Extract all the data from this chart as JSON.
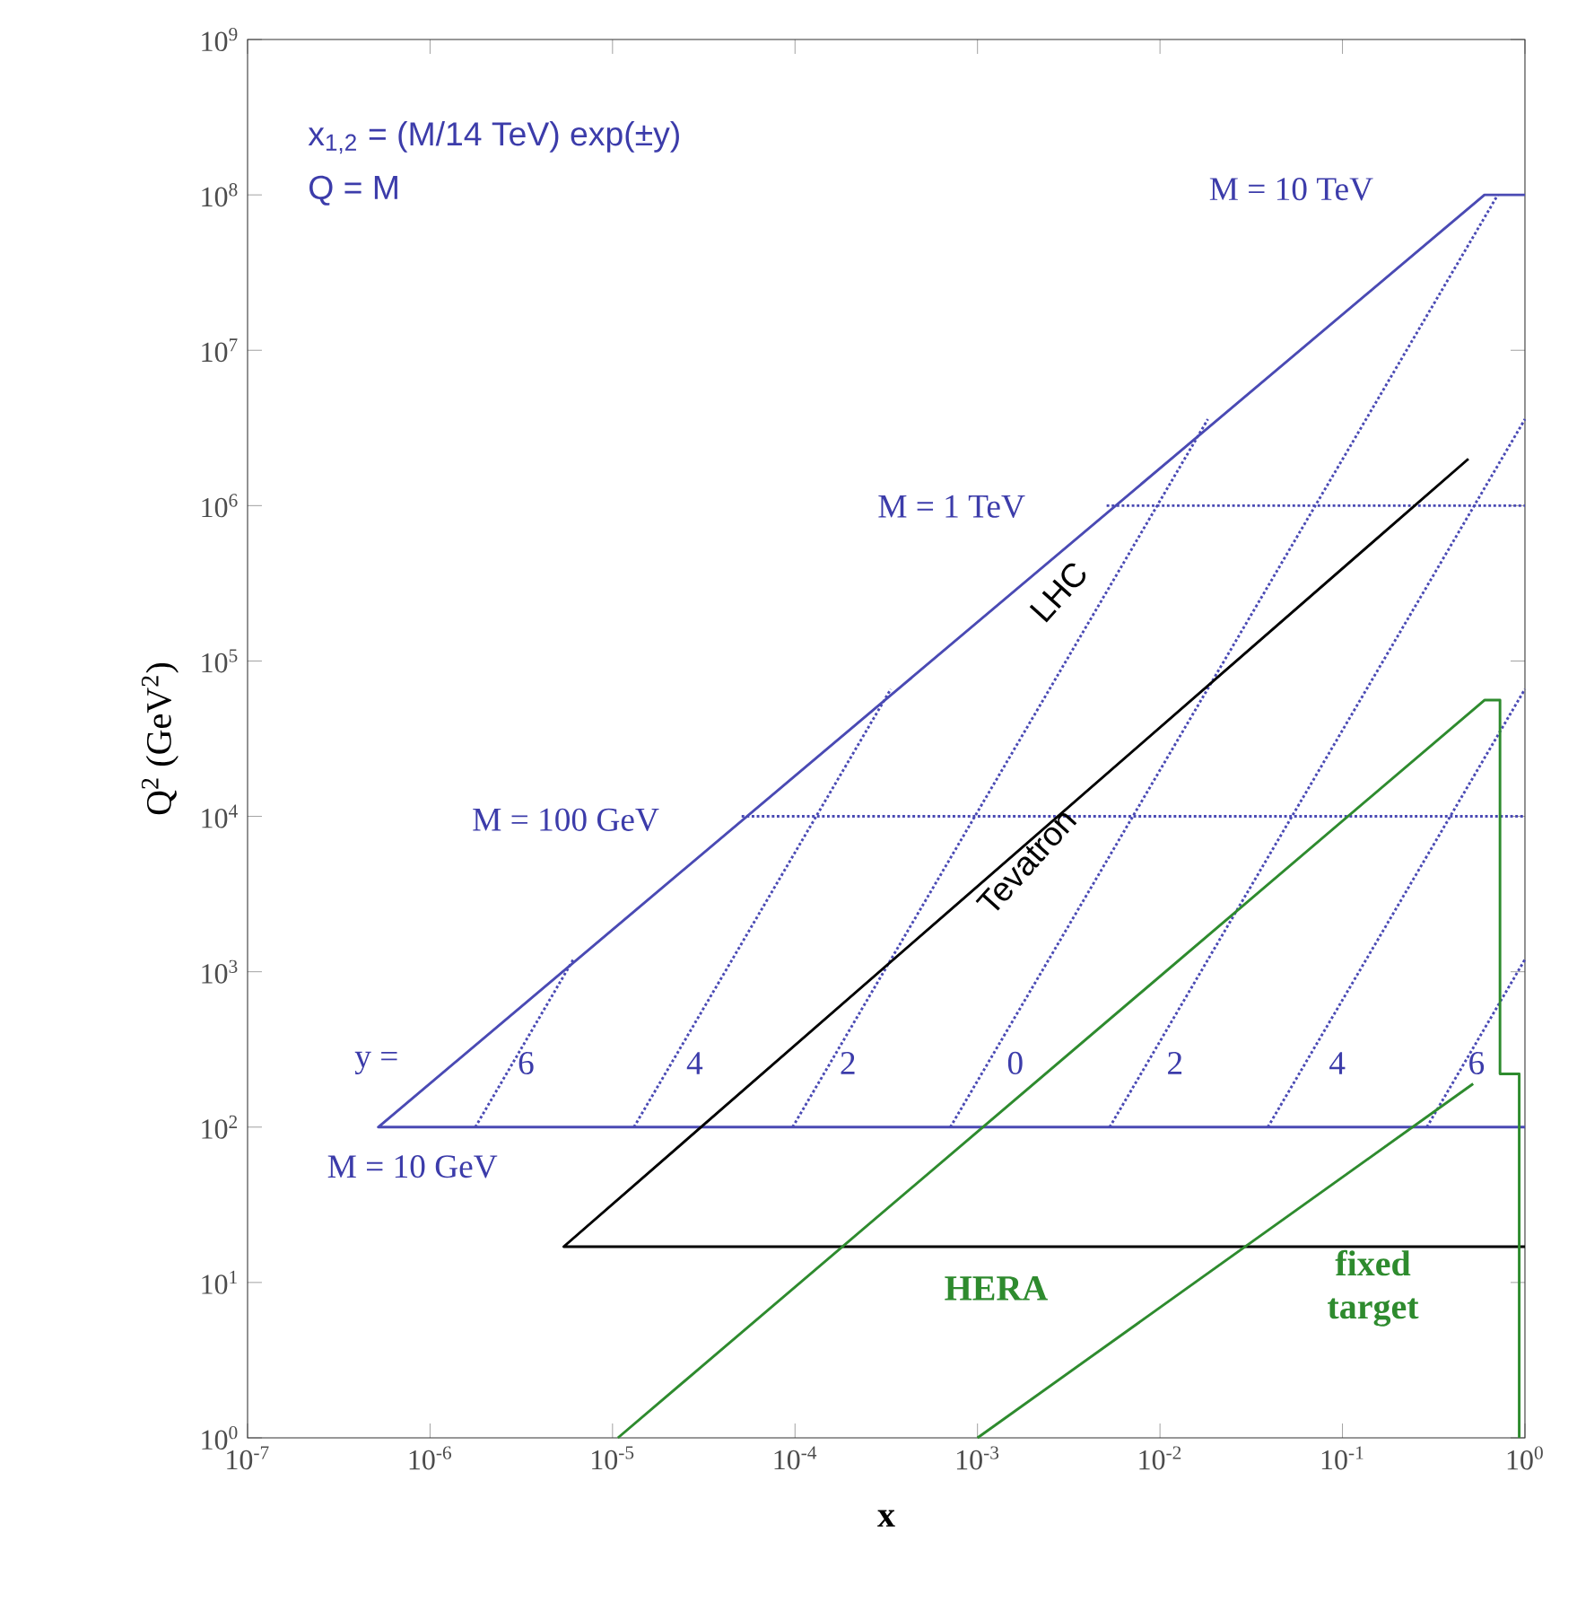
{
  "chart_data": {
    "type": "line",
    "log": "xy",
    "xlabel": "x",
    "ylabel": "Q$^{2}$  (GeV$^{2}$)",
    "xlim": [
      1e-07,
      1
    ],
    "ylim": [
      1,
      1000000000.0
    ],
    "xticks": [
      {
        "value": 1e-07,
        "label": "10$^{-7}$"
      },
      {
        "value": 1e-06,
        "label": "10$^{-6}$"
      },
      {
        "value": 1e-05,
        "label": "10$^{-5}$"
      },
      {
        "value": 0.0001,
        "label": "10$^{-4}$"
      },
      {
        "value": 0.001,
        "label": "10$^{-3}$"
      },
      {
        "value": 0.01,
        "label": "10$^{-2}$"
      },
      {
        "value": 0.1,
        "label": "10$^{-1}$"
      },
      {
        "value": 1,
        "label": "10$^{0}$"
      }
    ],
    "yticks": [
      {
        "value": 1,
        "label": "10$^{0}$"
      },
      {
        "value": 10,
        "label": "10$^{1}$"
      },
      {
        "value": 100,
        "label": "10$^{2}$"
      },
      {
        "value": 1000,
        "label": "10$^{3}$"
      },
      {
        "value": 10000,
        "label": "10$^{4}$"
      },
      {
        "value": 100000,
        "label": "10$^{5}$"
      },
      {
        "value": 1000000,
        "label": "10$^{6}$"
      },
      {
        "value": 10000000,
        "label": "10$^{7}$"
      },
      {
        "value": 100000000,
        "label": "10$^{8}$"
      },
      {
        "value": 1000000000,
        "label": "10$^{9}$"
      }
    ],
    "grid": false,
    "series": [
      {
        "color": "#4a4ab4",
        "line_style": "solid",
        "x": [
          1,
          5.2e-07,
          0.6,
          1
        ],
        "values": [
          100,
          100,
          100000000.0,
          100000000.0
        ]
      },
      {
        "color": "#4a4ab4",
        "line_style": "dotted",
        "x": [
          0.0051,
          1
        ],
        "values": [
          1000000.0,
          1000000.0
        ]
      },
      {
        "color": "#4a4ab4",
        "line_style": "dotted",
        "x": [
          5.1e-05,
          1
        ],
        "values": [
          10000.0,
          10000.0
        ]
      },
      {
        "color": "#4a4ab4",
        "line_style": "dotted",
        "x": [
          1.77e-06,
          6.1e-06
        ],
        "values": [
          100,
          1200
        ]
      },
      {
        "color": "#4a4ab4",
        "line_style": "dotted",
        "x": [
          1.31e-05,
          0.000335
        ],
        "values": [
          100,
          66000
        ]
      },
      {
        "color": "#4a4ab4",
        "line_style": "dotted",
        "x": [
          9.7e-05,
          0.0183
        ],
        "values": [
          100,
          3600000.0
        ]
      },
      {
        "color": "#4a4ab4",
        "line_style": "dotted",
        "x": [
          0.00071,
          0.71
        ],
        "values": [
          100,
          100000000.0
        ]
      },
      {
        "color": "#4a4ab4",
        "line_style": "dotted",
        "x": [
          0.0053,
          1
        ],
        "values": [
          100,
          3600000.0
        ]
      },
      {
        "color": "#4a4ab4",
        "line_style": "dotted",
        "x": [
          0.039,
          1
        ],
        "values": [
          100,
          66000
        ]
      },
      {
        "color": "#4a4ab4",
        "line_style": "dotted",
        "x": [
          0.29,
          1
        ],
        "values": [
          100,
          1200
        ]
      },
      {
        "color": "#000000",
        "line_style": "solid",
        "x": [
          1,
          5.4e-06,
          0.49
        ],
        "values": [
          17,
          17,
          2000000.0
        ]
      },
      {
        "color": "#2e8b2e",
        "line_style": "solid",
        "x": [
          1.07e-05,
          0.6,
          0.73,
          0.73,
          0.93,
          0.93
        ],
        "values": [
          1,
          56000,
          56000,
          220,
          220,
          1
        ]
      },
      {
        "color": "#2e8b2e",
        "line_style": "solid",
        "x": [
          0.001,
          0.52
        ],
        "values": [
          1,
          190
        ]
      }
    ],
    "annotations": [
      "x$_{1,2}$ = (M/14 TeV) exp(±y)",
      "Q = M",
      "M = 10 TeV",
      "M = 1 TeV",
      "M = 100 GeV",
      "M = 10 GeV",
      "y =",
      "6",
      "4",
      "2",
      "0",
      "2",
      "4",
      "6",
      "LHC",
      "Tevatron",
      "HERA",
      "fixed target"
    ]
  }
}
